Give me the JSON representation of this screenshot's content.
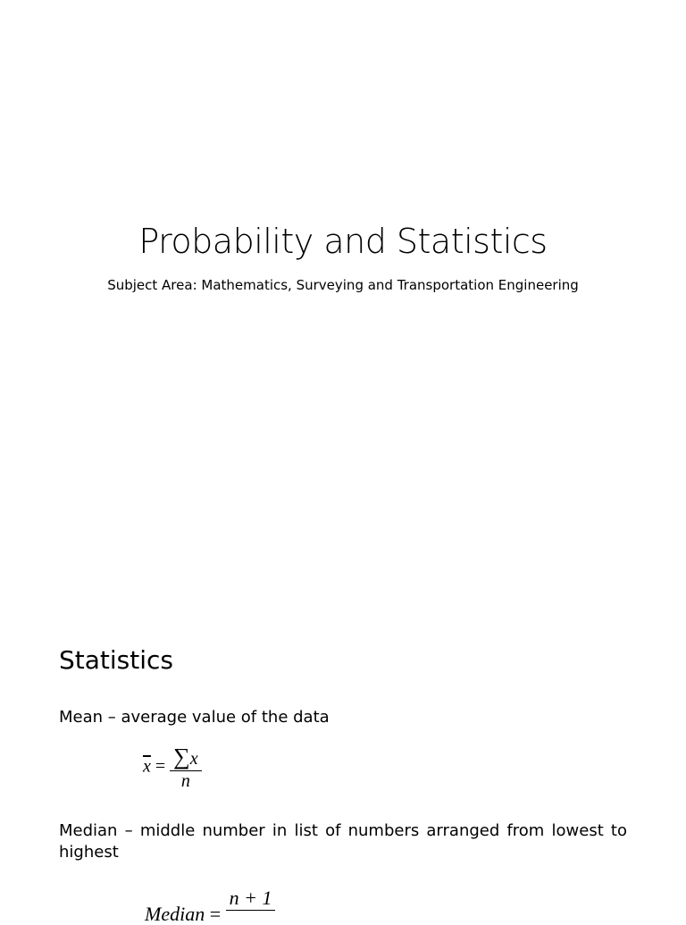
{
  "slide1": {
    "title": "Probability and Statistics",
    "subtitle": "Subject Area: Mathematics,  Surveying and Transportation Engineering"
  },
  "slide2": {
    "heading": "Statistics",
    "mean_text": "Mean – average value of the data",
    "mean_formula": {
      "lhs": "x",
      "eq": "=",
      "sum": "∑",
      "num_var": "x",
      "den": "n"
    },
    "median_text": "Median – middle number in list of numbers arranged from lowest to highest",
    "median_formula": {
      "lhs": "Median",
      "eq": "=",
      "num": "n + 1"
    }
  }
}
